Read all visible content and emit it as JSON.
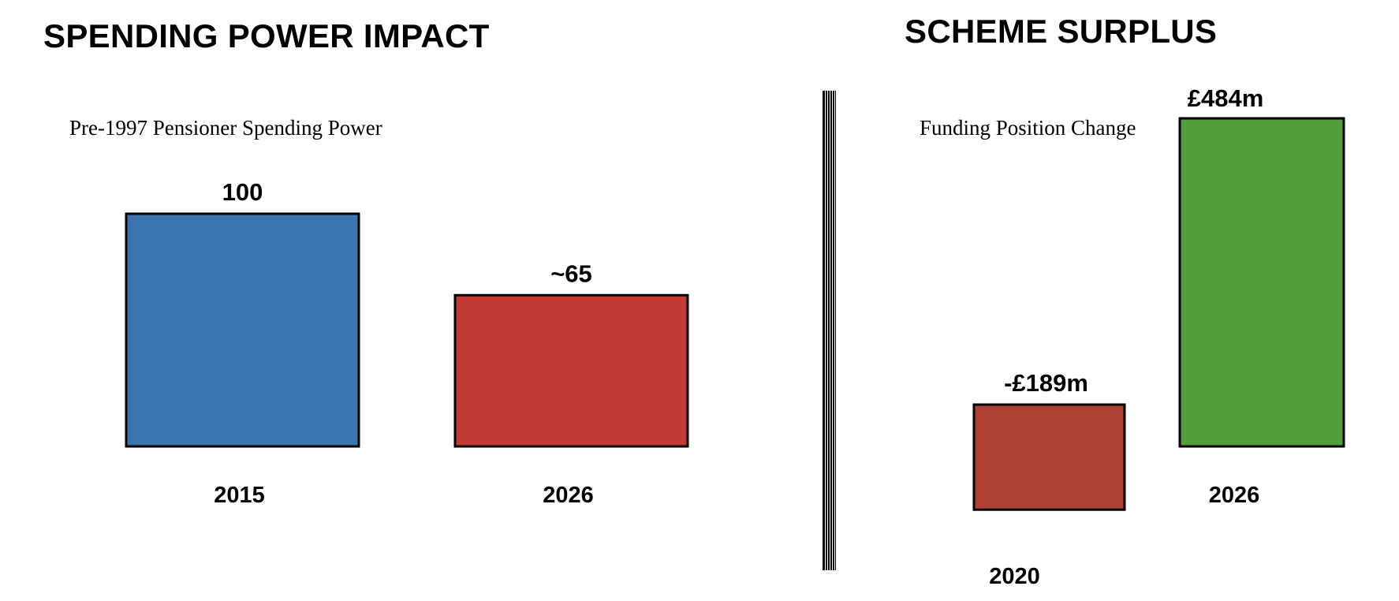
{
  "chart_data": [
    {
      "type": "bar",
      "title": "SPENDING POWER IMPACT",
      "subtitle": "Pre-1997 Pensioner Spending Power",
      "categories": [
        "2015",
        "2026"
      ],
      "values": [
        100,
        65
      ],
      "data_labels": [
        "100",
        "~65"
      ],
      "colors": [
        "#3b74ae",
        "#c33a33"
      ],
      "ylim": [
        0,
        100
      ],
      "grid": false
    },
    {
      "type": "bar",
      "title": "SCHEME SURPLUS",
      "subtitle": "Funding Position Change",
      "categories": [
        "2020",
        "2026"
      ],
      "values": [
        -189,
        484
      ],
      "data_labels": [
        "-£189m",
        "£484m"
      ],
      "colors": [
        "#b04334",
        "#539e3c"
      ],
      "ylim": [
        -189,
        484
      ],
      "grid": false
    }
  ]
}
